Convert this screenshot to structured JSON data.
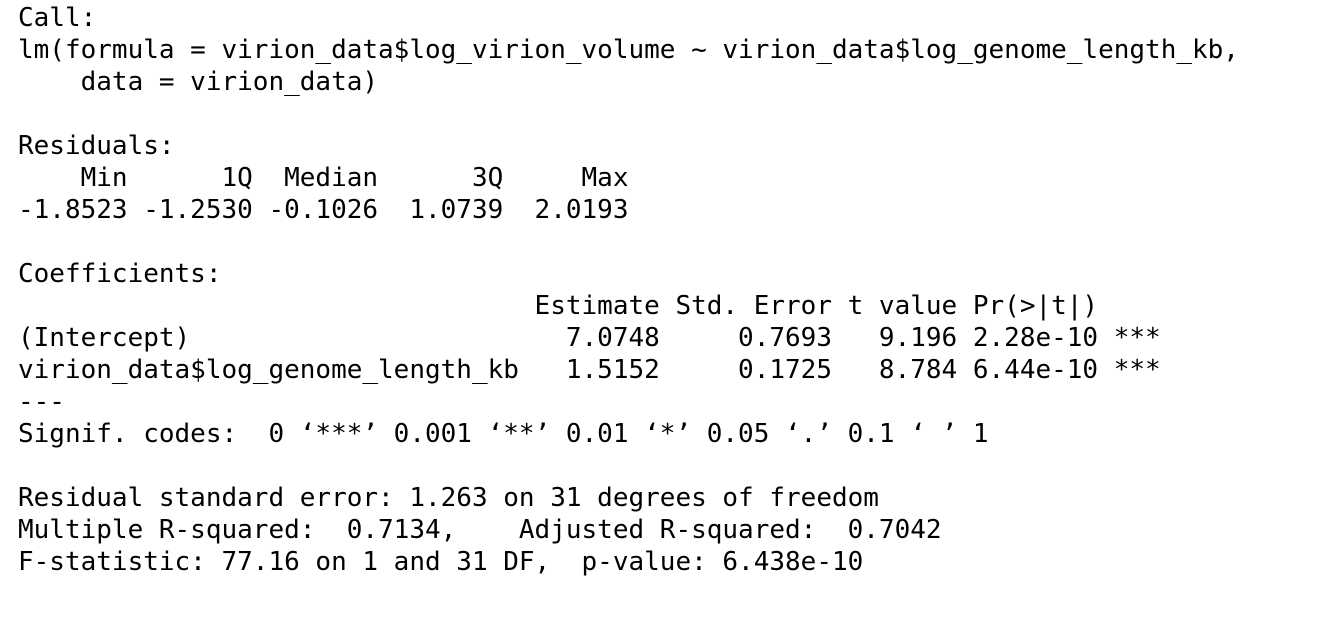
{
  "output_lines": [
    "Call:",
    "lm(formula = virion_data$log_virion_volume ~ virion_data$log_genome_length_kb,",
    "    data = virion_data)",
    "",
    "Residuals:",
    "    Min      1Q  Median      3Q     Max ",
    "-1.8523 -1.2530 -0.1026  1.0739  2.0193 ",
    "",
    "Coefficients:",
    "                                 Estimate Std. Error t value Pr(>|t|)    ",
    "(Intercept)                        7.0748     0.7693   9.196 2.28e-10 ***",
    "virion_data$log_genome_length_kb   1.5152     0.1725   8.784 6.44e-10 ***",
    "---",
    "Signif. codes:  0 ‘***’ 0.001 ‘**’ 0.01 ‘*’ 0.05 ‘.’ 0.1 ‘ ’ 1",
    "",
    "Residual standard error: 1.263 on 31 degrees of freedom",
    "Multiple R-squared:  0.7134,\tAdjusted R-squared:  0.7042 ",
    "F-statistic: 77.16 on 1 and 31 DF,  p-value: 6.438e-10"
  ]
}
